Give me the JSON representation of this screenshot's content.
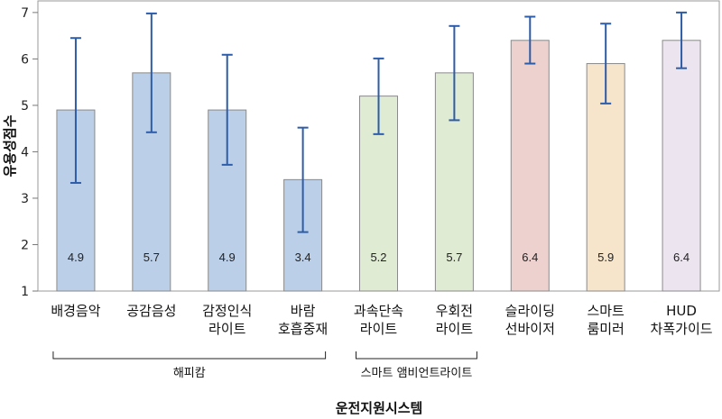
{
  "chart_data": {
    "type": "bar",
    "title": "",
    "xlabel": "운전지원시스템",
    "ylabel": "유용성점수",
    "ylim": [
      1,
      7.25
    ],
    "yticks": [
      1,
      2,
      3,
      4,
      5,
      6,
      7
    ],
    "grid": false,
    "categories": [
      {
        "lines": [
          "배경음악"
        ]
      },
      {
        "lines": [
          "공감음성"
        ]
      },
      {
        "lines": [
          "감정인식",
          "라이트"
        ]
      },
      {
        "lines": [
          "바람",
          "호흡중재"
        ]
      },
      {
        "lines": [
          "과속단속",
          "라이트"
        ]
      },
      {
        "lines": [
          "우회전",
          "라이트"
        ]
      },
      {
        "lines": [
          "슬라이딩",
          "선바이저"
        ]
      },
      {
        "lines": [
          "스마트",
          "룸미러"
        ]
      },
      {
        "lines": [
          "HUD",
          "차폭가이드"
        ]
      }
    ],
    "values": [
      4.9,
      5.7,
      4.9,
      3.4,
      5.2,
      5.7,
      6.4,
      5.9,
      6.4
    ],
    "value_labels": [
      "4.9",
      "5.7",
      "4.9",
      "3.4",
      "5.2",
      "5.7",
      "6.4",
      "5.9",
      "6.4"
    ],
    "error_low": [
      3.33,
      4.42,
      3.72,
      2.27,
      4.38,
      4.68,
      5.9,
      5.04,
      5.8
    ],
    "error_high": [
      6.45,
      6.98,
      6.09,
      4.52,
      6.01,
      6.71,
      6.91,
      6.76,
      7.0
    ],
    "bar_colors": [
      "#bccfe8",
      "#bccfe8",
      "#bccfe8",
      "#bccfe8",
      "#dfebd2",
      "#dfebd2",
      "#ecd1cf",
      "#f6e4cb",
      "#ece5f0"
    ],
    "error_color": "#2d5ca8",
    "groups": [
      {
        "label": "해피캄",
        "start": 0,
        "end": 3
      },
      {
        "label": "스마트 앰비언트라이트",
        "start": 4,
        "end": 5
      }
    ]
  }
}
